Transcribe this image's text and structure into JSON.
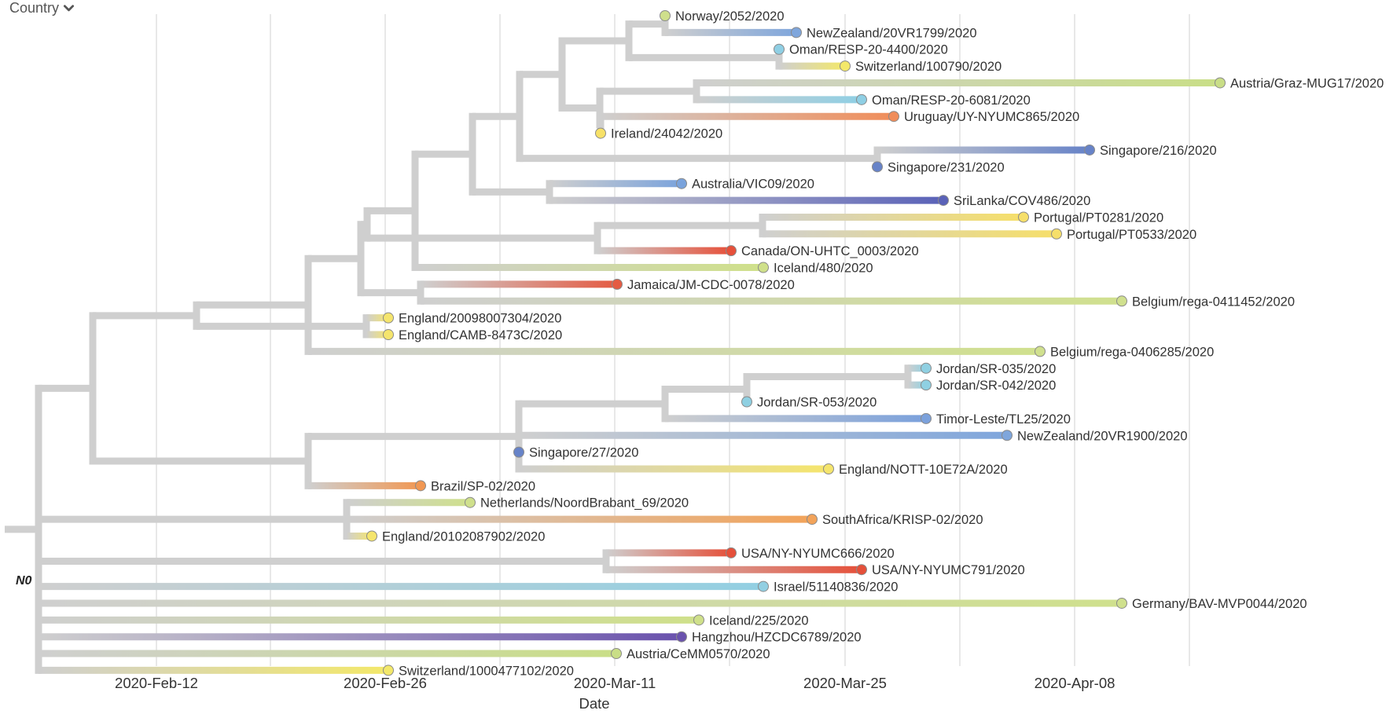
{
  "color_by": {
    "label": "Country",
    "icon": "chevron-down-icon"
  },
  "axis": {
    "title": "Date",
    "ticks": [
      "2020-Feb-12",
      "2020-Feb-26",
      "2020-Mar-11",
      "2020-Mar-25",
      "2020-Apr-08"
    ]
  },
  "root_label": "N0",
  "colors": {
    "branch": "#cfcfcf",
    "grid": "#e8e8e8",
    "Norway": "#cfdf8c",
    "Switzerland": "#f3e86a",
    "Ireland": "#f7e168",
    "NewZealand": "#7fa6dc",
    "Oman": "#8fcfe4",
    "Austria": "#c9de87",
    "Uruguay": "#f08d5a",
    "Singapore": "#6783c8",
    "Australia": "#7aa3dc",
    "SriLanka": "#5a62b8",
    "Portugal": "#f6df6a",
    "Canada": "#e6503a",
    "Iceland": "#cfe08a",
    "Jamaica": "#e45b43",
    "Belgium": "#d0e08e",
    "England": "#f5e56d",
    "Jordan": "#8fd0e2",
    "Timor-Leste": "#7ba1dc",
    "Brazil": "#f19752",
    "Netherlands": "#cfe08c",
    "SouthAfrica": "#f2a35a",
    "USA": "#e5503a",
    "Israel": "#92cfe2",
    "Germany": "#cfe08d",
    "Hangzhou": "#6a52ad"
  },
  "tips": [
    {
      "label": "Norway/2052/2020",
      "country": "Norway"
    },
    {
      "label": "NewZealand/20VR1799/2020",
      "country": "NewZealand"
    },
    {
      "label": "Oman/RESP-20-4400/2020",
      "country": "Oman"
    },
    {
      "label": "Switzerland/100790/2020",
      "country": "Switzerland"
    },
    {
      "label": "Austria/Graz-MUG17/2020",
      "country": "Austria"
    },
    {
      "label": "Oman/RESP-20-6081/2020",
      "country": "Oman"
    },
    {
      "label": "Uruguay/UY-NYUMC865/2020",
      "country": "Uruguay"
    },
    {
      "label": "Ireland/24042/2020",
      "country": "Ireland"
    },
    {
      "label": "Singapore/216/2020",
      "country": "Singapore"
    },
    {
      "label": "Singapore/231/2020",
      "country": "Singapore"
    },
    {
      "label": "Australia/VIC09/2020",
      "country": "Australia"
    },
    {
      "label": "SriLanka/COV486/2020",
      "country": "SriLanka"
    },
    {
      "label": "Portugal/PT0281/2020",
      "country": "Portugal"
    },
    {
      "label": "Portugal/PT0533/2020",
      "country": "Portugal"
    },
    {
      "label": "Canada/ON-UHTC_0003/2020",
      "country": "Canada"
    },
    {
      "label": "Iceland/480/2020",
      "country": "Iceland"
    },
    {
      "label": "Jamaica/JM-CDC-0078/2020",
      "country": "Jamaica"
    },
    {
      "label": "Belgium/rega-0411452/2020",
      "country": "Belgium"
    },
    {
      "label": "England/20098007304/2020",
      "country": "England"
    },
    {
      "label": "England/CAMB-8473C/2020",
      "country": "England"
    },
    {
      "label": "Belgium/rega-0406285/2020",
      "country": "Belgium"
    },
    {
      "label": "Jordan/SR-035/2020",
      "country": "Jordan"
    },
    {
      "label": "Jordan/SR-042/2020",
      "country": "Jordan"
    },
    {
      "label": "Jordan/SR-053/2020",
      "country": "Jordan"
    },
    {
      "label": "Timor-Leste/TL25/2020",
      "country": "Timor-Leste"
    },
    {
      "label": "NewZealand/20VR1900/2020",
      "country": "NewZealand"
    },
    {
      "label": "Singapore/27/2020",
      "country": "Singapore"
    },
    {
      "label": "England/NOTT-10E72A/2020",
      "country": "England"
    },
    {
      "label": "Brazil/SP-02/2020",
      "country": "Brazil"
    },
    {
      "label": "Netherlands/NoordBrabant_69/2020",
      "country": "Netherlands"
    },
    {
      "label": "SouthAfrica/KRISP-02/2020",
      "country": "SouthAfrica"
    },
    {
      "label": "England/20102087902/2020",
      "country": "England"
    },
    {
      "label": "USA/NY-NYUMC666/2020",
      "country": "USA"
    },
    {
      "label": "USA/NY-NYUMC791/2020",
      "country": "USA"
    },
    {
      "label": "Israel/51140836/2020",
      "country": "Israel"
    },
    {
      "label": "Germany/BAV-MVP0044/2020",
      "country": "Germany"
    },
    {
      "label": "Iceland/225/2020",
      "country": "Iceland"
    },
    {
      "label": "Hangzhou/HZCDC6789/2020",
      "country": "Hangzhou"
    },
    {
      "label": "Austria/CeMM0570/2020",
      "country": "Austria"
    },
    {
      "label": "Switzerland/1000477102/2020",
      "country": "Switzerland"
    }
  ]
}
